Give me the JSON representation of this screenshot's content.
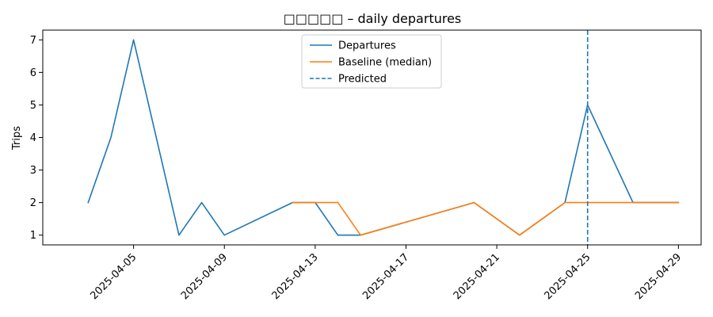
{
  "chart_data": {
    "type": "line",
    "title": "□□□□□ – daily departures",
    "xlabel": "",
    "ylabel": "Trips",
    "x_ticks": [
      "2025-04-05",
      "2025-04-09",
      "2025-04-13",
      "2025-04-17",
      "2025-04-21",
      "2025-04-25",
      "2025-04-29"
    ],
    "y_ticks": [
      1,
      2,
      3,
      4,
      5,
      6,
      7
    ],
    "xlim": [
      "2025-04-01",
      "2025-04-30"
    ],
    "ylim": [
      0.7,
      7.3
    ],
    "legend_position": "top-center",
    "grid": false,
    "series": [
      {
        "name": "Departures",
        "color": "#1f77b4",
        "style": "solid",
        "points": [
          [
            "2025-04-03",
            2
          ],
          [
            "2025-04-04",
            4
          ],
          [
            "2025-04-05",
            7
          ],
          [
            "2025-04-07",
            1
          ],
          [
            "2025-04-08",
            2
          ],
          [
            "2025-04-09",
            1
          ],
          [
            "2025-04-12",
            2
          ],
          [
            "2025-04-13",
            2
          ],
          [
            "2025-04-14",
            1
          ],
          [
            "2025-04-15",
            1
          ],
          [
            "2025-04-20",
            2
          ],
          [
            "2025-04-22",
            1
          ],
          [
            "2025-04-24",
            2
          ],
          [
            "2025-04-25",
            5
          ],
          [
            "2025-04-27",
            2
          ],
          [
            "2025-04-29",
            2
          ]
        ]
      },
      {
        "name": "Baseline (median)",
        "color": "#ff7f0e",
        "style": "solid",
        "points": [
          [
            "2025-04-12",
            2
          ],
          [
            "2025-04-13",
            2
          ],
          [
            "2025-04-14",
            2
          ],
          [
            "2025-04-15",
            1
          ],
          [
            "2025-04-20",
            2
          ],
          [
            "2025-04-22",
            1
          ],
          [
            "2025-04-24",
            2
          ],
          [
            "2025-04-25",
            2
          ],
          [
            "2025-04-27",
            2
          ],
          [
            "2025-04-29",
            2
          ]
        ]
      }
    ],
    "markers": [
      {
        "name": "Predicted",
        "date": "2025-04-25",
        "color": "#1f77b4",
        "style": "dashed"
      }
    ]
  }
}
